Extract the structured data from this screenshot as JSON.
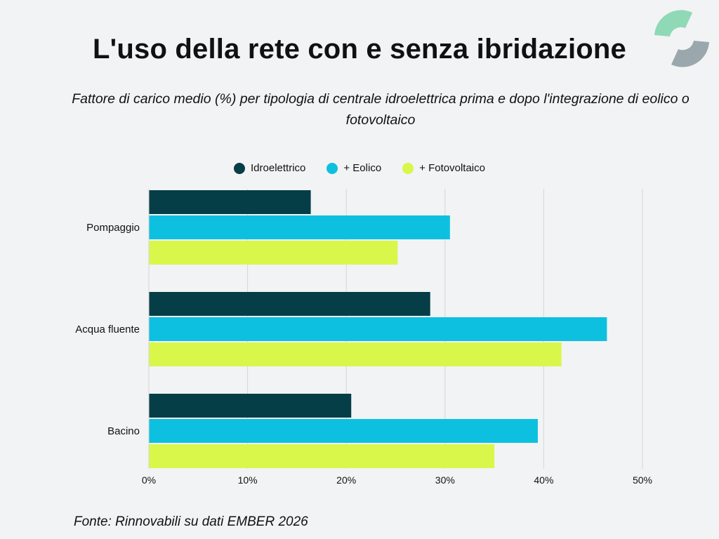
{
  "header": {
    "title": "L'uso della rete con e senza ibridazione",
    "subtitle": "Fattore di carico medio (%) per tipologia di centrale idroelettrica prima e dopo l'integrazione di eolico o fotovoltaico"
  },
  "footer": {
    "source": "Fonte: Rinnovabili su dati EMBER 2026"
  },
  "logo": {
    "icon": "ring-logo-icon",
    "colors": [
      "#8fd9b6",
      "#9aa8ae"
    ]
  },
  "chart_data": {
    "type": "bar",
    "orientation": "horizontal",
    "title": "L'uso della rete con e senza ibridazione",
    "subtitle": "Fattore di carico medio (%) per tipologia di centrale idroelettrica prima e dopo l'integrazione di eolico o fotovoltaico",
    "categories": [
      "Pompaggio",
      "Acqua fluente",
      "Bacino"
    ],
    "series": [
      {
        "name": "Idroelettrico",
        "color": "#053e47",
        "values": [
          16.4,
          28.5,
          20.5
        ]
      },
      {
        "name": "+ Eolico",
        "color": "#0ec0e0",
        "values": [
          30.5,
          46.4,
          39.4
        ]
      },
      {
        "name": "+ Fotovoltaico",
        "color": "#d8f74a",
        "values": [
          25.2,
          41.8,
          35.0
        ]
      }
    ],
    "xlim": [
      0,
      50
    ],
    "xticks": [
      "0%",
      "10%",
      "20%",
      "30%",
      "40%",
      "50%"
    ],
    "grid": true,
    "legend_position": "top"
  }
}
